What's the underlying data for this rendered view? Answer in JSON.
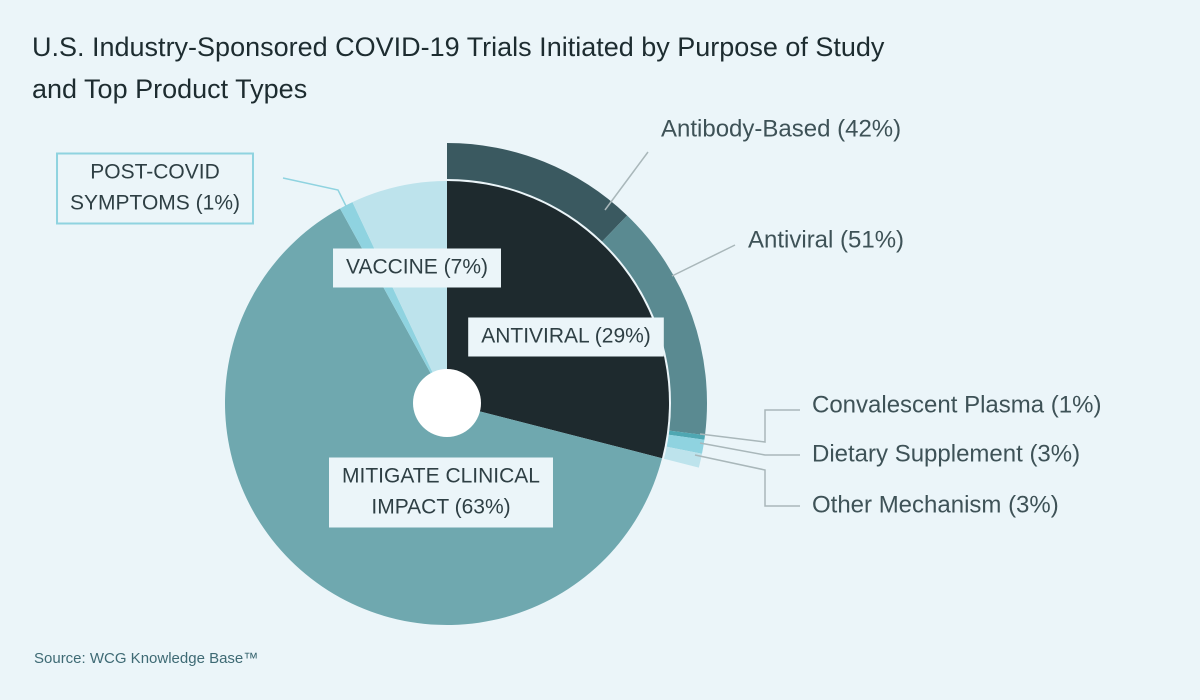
{
  "title": "U.S. Industry-Sponsored COVID-19 Trials Initiated by Purpose of Study and Top Product Types",
  "source": "Source: WCG Knowledge Base™",
  "chart_data": {
    "type": "pie",
    "inner_ring": {
      "slices": [
        {
          "name": "ANTIVIRAL",
          "value": 29,
          "label": "ANTIVIRAL (29%)",
          "color": "#1e2a2e"
        },
        {
          "name": "MITIGATE CLINICAL IMPACT",
          "value": 63,
          "label_lines": [
            "MITIGATE CLINICAL",
            "IMPACT (63%)"
          ],
          "color": "#6fa8af"
        },
        {
          "name": "POST-COVID SYMPTOMS",
          "value": 1,
          "label_lines": [
            "POST-COVID",
            "SYMPTOMS (1%)"
          ],
          "color": "#8fd3e0"
        },
        {
          "name": "VACCINE",
          "value": 7,
          "label": "VACCINE (7%)",
          "color": "#bde3ec"
        }
      ]
    },
    "outer_ring": {
      "parent": "ANTIVIRAL",
      "slices": [
        {
          "name": "Antibody-Based",
          "value": 42,
          "label": "Antibody-Based (42%)",
          "color": "#3a5960"
        },
        {
          "name": "Antiviral",
          "value": 51,
          "label": "Antiviral (51%)",
          "color": "#5a8a91"
        },
        {
          "name": "Convalescent Plasma",
          "value": 1,
          "label": "Convalescent Plasma (1%)",
          "color": "#4fa7b2"
        },
        {
          "name": "Dietary Supplement",
          "value": 3,
          "label": "Dietary Supplement (3%)",
          "color": "#8fd3e0"
        },
        {
          "name": "Other Mechanism",
          "value": 3,
          "label": "Other Mechanism (3%)",
          "color": "#bde3ec"
        }
      ]
    },
    "colors": {
      "background": "#ebf5f9",
      "label_box": "#ebf5f9",
      "callout_line": "#a9b7ba",
      "post_covid_border": "#8fd3e0"
    }
  }
}
